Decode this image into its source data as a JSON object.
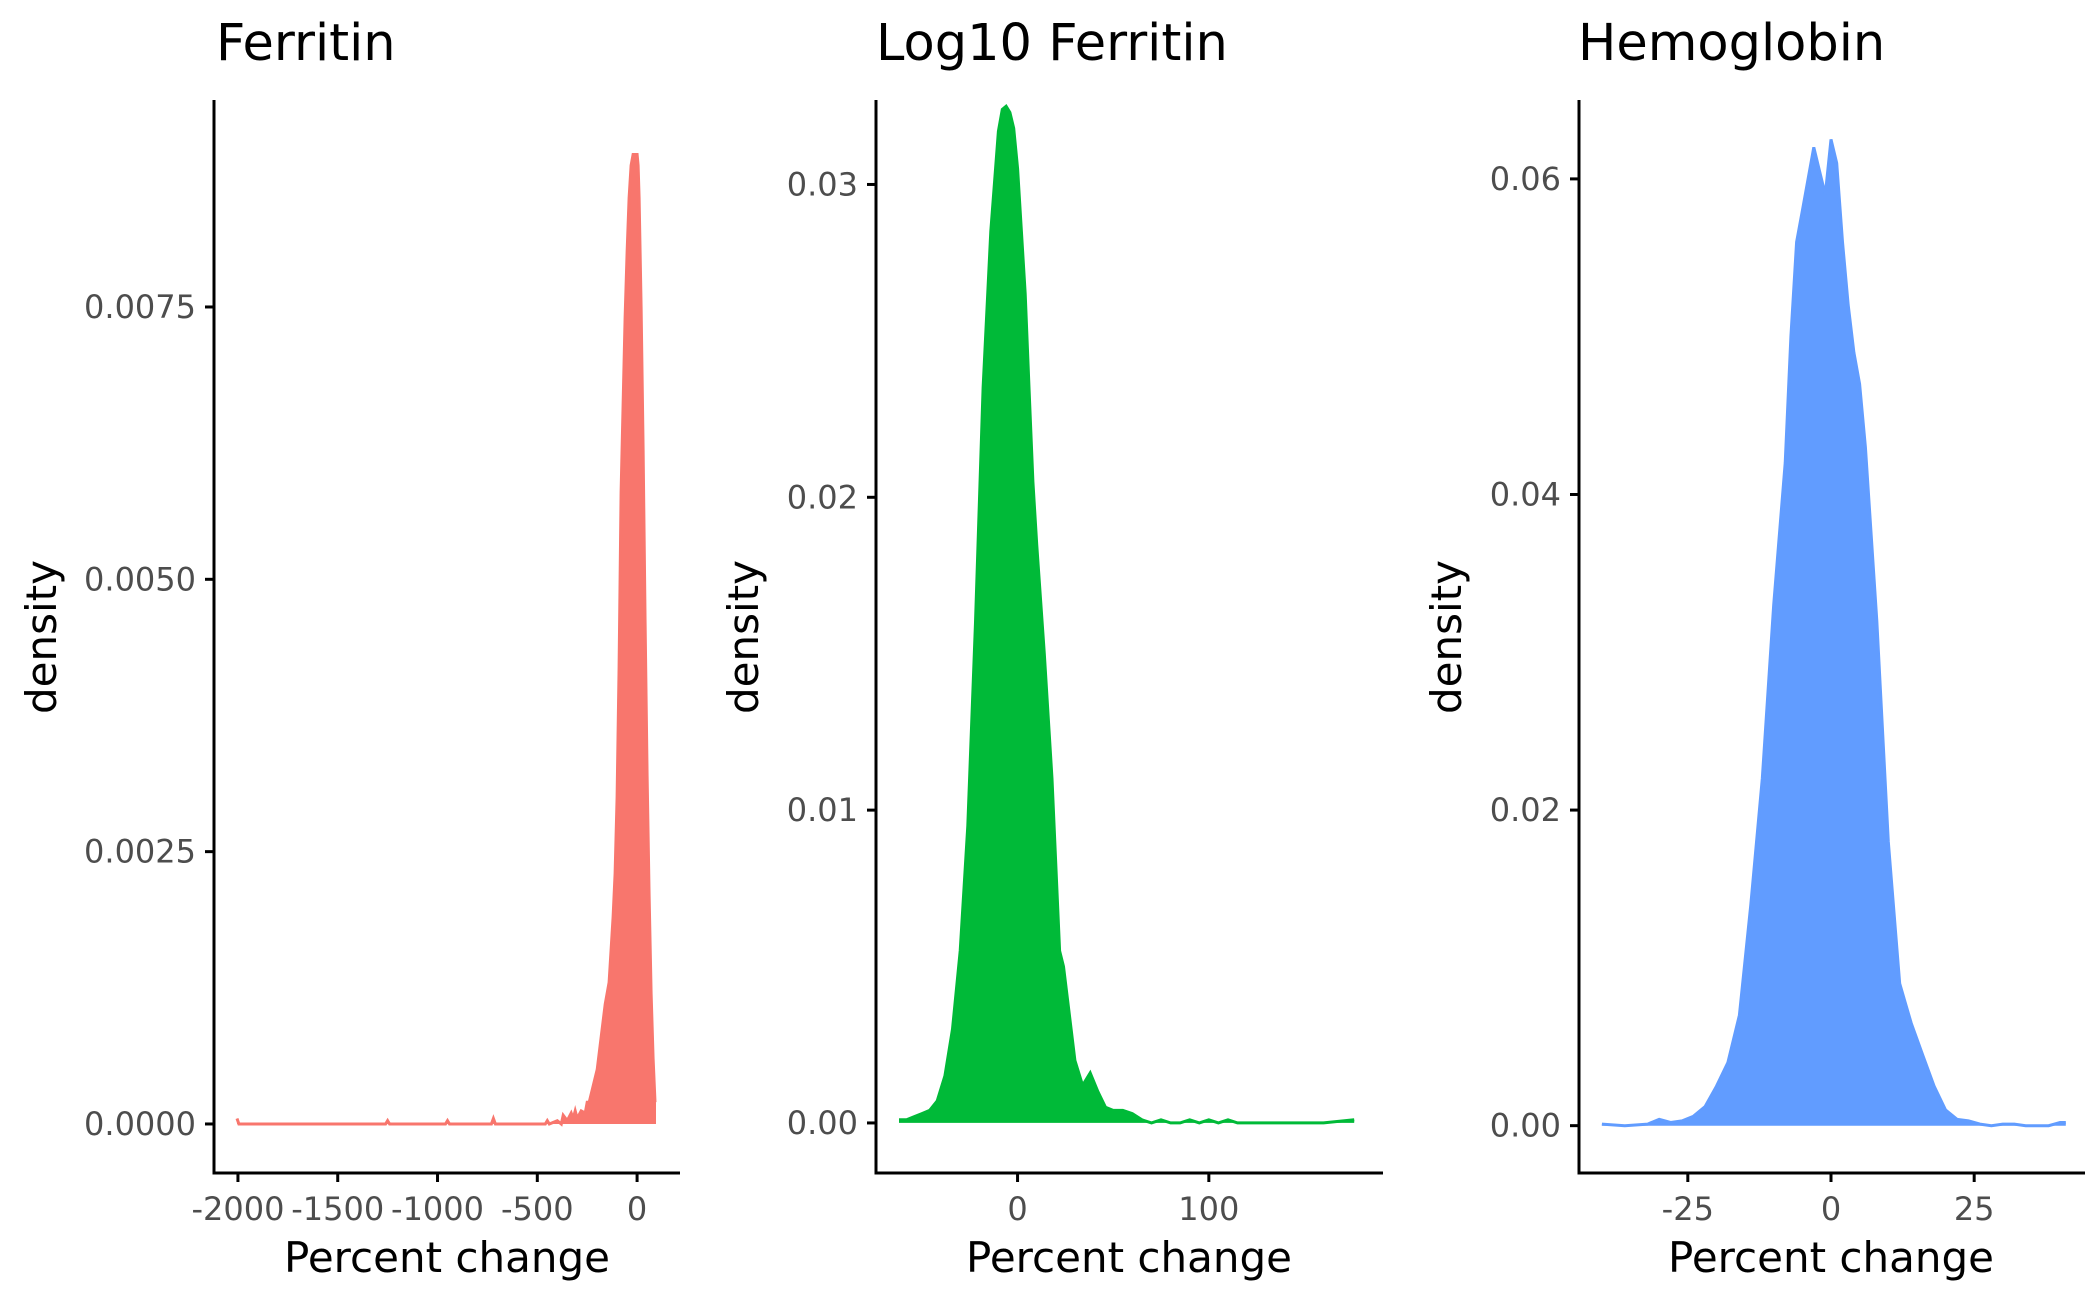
{
  "chart_data": [
    {
      "type": "area",
      "title": "Ferritin",
      "xlabel": "Percent change",
      "ylabel": "density",
      "color": "#F8766D",
      "xlim": [
        -2120,
        205
      ],
      "ylim": [
        -0.00045,
        0.0094
      ],
      "x_ticks": [
        -2000,
        -1500,
        -1000,
        -500,
        0
      ],
      "x_tick_labels": [
        "-2000",
        "-1500",
        "-1000",
        "-500",
        "0"
      ],
      "y_ticks": [
        0,
        0.0025,
        0.005,
        0.0075
      ],
      "y_tick_labels": [
        "0.0000",
        "0.0025",
        "0.0050",
        "0.0075"
      ],
      "x": [
        -2005,
        -1995,
        -1800,
        -1600,
        -1400,
        -1260,
        -1250,
        -1240,
        -1100,
        -960,
        -950,
        -940,
        -800,
        -730,
        -720,
        -710,
        -600,
        -460,
        -450,
        -440,
        -400,
        -380,
        -370,
        -350,
        -330,
        -320,
        -310,
        -300,
        -280,
        -260,
        -250,
        -240,
        -220,
        -200,
        -180,
        -160,
        -140,
        -130,
        -120,
        -110,
        -100,
        -90,
        -80,
        -70,
        -60,
        -50,
        -40,
        -30,
        -20,
        -10,
        0,
        5,
        10,
        20,
        30,
        40,
        50,
        60,
        70,
        80,
        90,
        95
      ],
      "y": [
        5e-05,
        0.0,
        0.0,
        0.0,
        0.0,
        0.0,
        3e-05,
        0.0,
        0.0,
        0.0,
        3e-05,
        0.0,
        0.0,
        0.0,
        5e-05,
        0.0,
        0.0,
        0.0,
        3e-05,
        0.0,
        3e-05,
        0.0,
        8e-05,
        3e-05,
        0.0001,
        5e-05,
        0.00012,
        5e-05,
        0.00012,
        0.0001,
        0.0002,
        0.0002,
        0.00035,
        0.0005,
        0.0008,
        0.0011,
        0.0013,
        0.0016,
        0.0019,
        0.0023,
        0.003,
        0.0042,
        0.0058,
        0.0066,
        0.0074,
        0.008,
        0.0085,
        0.0088,
        0.0089,
        0.0089,
        0.0089,
        0.0088,
        0.0085,
        0.0075,
        0.0062,
        0.0046,
        0.0032,
        0.0021,
        0.0012,
        0.0006,
        0.0002,
        0.0002
      ]
    },
    {
      "type": "area",
      "title": "Log10 Ferritin",
      "xlabel": "Percent change",
      "ylabel": "density",
      "color": "#00BA38",
      "xlim": [
        -74,
        190
      ],
      "ylim": [
        -0.0016,
        0.0327
      ],
      "x_ticks": [
        0,
        100
      ],
      "x_tick_labels": [
        "0",
        "100"
      ],
      "y_ticks": [
        0,
        0.01,
        0.02,
        0.03
      ],
      "y_tick_labels": [
        "0.00",
        "0.01",
        "0.02",
        "0.03"
      ],
      "x": [
        -62,
        -58,
        -54,
        -50,
        -46,
        -42,
        -38,
        -34,
        -30,
        -26,
        -22,
        -18,
        -14,
        -10,
        -8,
        -6,
        -4,
        -2,
        0,
        2,
        4,
        6,
        8,
        10,
        14,
        18,
        22,
        24,
        26,
        28,
        30,
        34,
        38,
        42,
        46,
        50,
        55,
        60,
        65,
        70,
        75,
        80,
        85,
        90,
        95,
        100,
        105,
        110,
        115,
        120,
        140,
        160,
        176
      ],
      "y": [
        0.0001,
        0.0001,
        0.0002,
        0.0003,
        0.0004,
        0.0007,
        0.0015,
        0.003,
        0.0055,
        0.0095,
        0.016,
        0.0235,
        0.0285,
        0.0317,
        0.0324,
        0.0325,
        0.0323,
        0.0318,
        0.0305,
        0.0285,
        0.0265,
        0.0235,
        0.0205,
        0.0185,
        0.015,
        0.011,
        0.0055,
        0.005,
        0.004,
        0.003,
        0.002,
        0.0012,
        0.0016,
        0.001,
        0.0005,
        0.0004,
        0.0004,
        0.0003,
        0.0001,
        0.0,
        0.0001,
        0.0,
        0.0,
        0.0001,
        0.0,
        0.0001,
        0.0,
        0.0001,
        0.0,
        0.0,
        0.0,
        0.0,
        0.0001
      ]
    },
    {
      "type": "area",
      "title": "Hemoglobin",
      "xlabel": "Percent change",
      "ylabel": "density",
      "color": "#619CFF",
      "xlim": [
        -44,
        44
      ],
      "ylim": [
        -0.003,
        0.065
      ],
      "x_ticks": [
        -25,
        0,
        25
      ],
      "x_tick_labels": [
        "-25",
        "0",
        "25"
      ],
      "y_ticks": [
        0,
        0.02,
        0.04,
        0.06
      ],
      "y_tick_labels": [
        "0.00",
        "0.02",
        "0.04",
        "0.06"
      ],
      "x": [
        -40,
        -36,
        -32,
        -30,
        -28,
        -26,
        -24,
        -22,
        -20,
        -18,
        -16,
        -14,
        -12,
        -10,
        -8,
        -7,
        -6,
        -5,
        -4,
        -3,
        -2,
        -1,
        0,
        1,
        2,
        3,
        4,
        5,
        6,
        8,
        10,
        12,
        14,
        16,
        18,
        20,
        22,
        24,
        26,
        28,
        30,
        32,
        34,
        36,
        38,
        40,
        41
      ],
      "y": [
        0.0001,
        0.0,
        0.0001,
        0.0004,
        0.0002,
        0.0003,
        0.0006,
        0.0012,
        0.0025,
        0.004,
        0.007,
        0.014,
        0.022,
        0.033,
        0.042,
        0.05,
        0.056,
        0.058,
        0.06,
        0.062,
        0.0605,
        0.059,
        0.0625,
        0.061,
        0.056,
        0.052,
        0.049,
        0.047,
        0.043,
        0.032,
        0.018,
        0.009,
        0.0065,
        0.0045,
        0.0025,
        0.001,
        0.0004,
        0.0003,
        0.0001,
        0.0,
        0.0001,
        0.0001,
        0.0,
        0.0,
        0.0,
        0.0002,
        0.0002
      ]
    }
  ]
}
